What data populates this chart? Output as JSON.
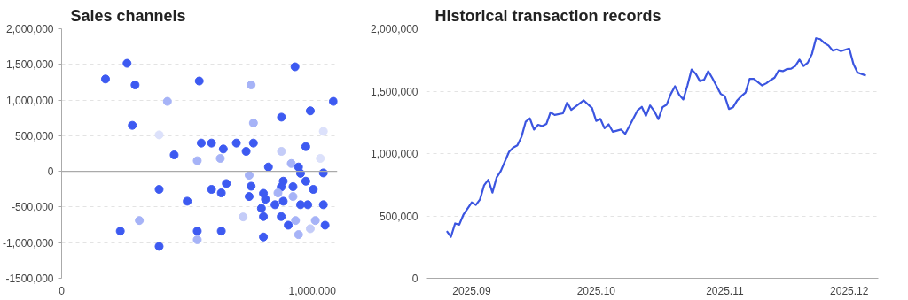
{
  "chart_data": [
    {
      "type": "scatter",
      "title": "Sales channels",
      "marker": "circle",
      "grid": "y",
      "x": [
        175000,
        261000,
        293000,
        282000,
        422000,
        389000,
        449000,
        549000,
        557000,
        598000,
        645000,
        697000,
        736000,
        765000,
        756000,
        765000,
        931000,
        877000,
        992000,
        1084000,
        1044000,
        974000,
        877000,
        1032000,
        541000,
        633000,
        825000,
        916000,
        945000,
        953000,
        1044000,
        748000,
        389000,
        598000,
        637000,
        657000,
        756000,
        748000,
        805000,
        813000,
        797000,
        805000,
        501000,
        851000,
        884000,
        876000,
        884000,
        863000,
        923000,
        923000,
        974000,
        1004000,
        953000,
        982000,
        1044000,
        876000,
        904000,
        933000,
        1012000,
        1051000,
        992000,
        945000,
        805000,
        724000,
        310000,
        234000,
        541000,
        541000,
        637000,
        389000
      ],
      "values": [
        1295000,
        1515000,
        1212000,
        645000,
        981000,
        512000,
        231000,
        1267000,
        397000,
        397000,
        314000,
        397000,
        281000,
        397000,
        1212000,
        678000,
        1466000,
        760000,
        849000,
        981000,
        562000,
        347000,
        281000,
        182000,
        149000,
        182000,
        61000,
        110000,
        61000,
        -28000,
        -22000,
        -55000,
        -253000,
        -253000,
        -303000,
        -171000,
        -209000,
        -353000,
        -309000,
        -391000,
        -518000,
        -634000,
        -419000,
        -468000,
        -138000,
        -220000,
        -419000,
        -303000,
        -215000,
        -353000,
        -138000,
        -253000,
        -468000,
        -468000,
        -468000,
        -634000,
        -755000,
        -689000,
        -689000,
        -755000,
        -804000,
        -887000,
        -920000,
        -639000,
        -689000,
        -837000,
        -837000,
        -959000,
        -837000,
        -1052000
      ],
      "colors": [
        "#3d5af1",
        "#3d5af1",
        "#3d5af1",
        "#3d5af1",
        "#a6b3f7",
        "#dce1fb",
        "#3d5af1",
        "#3d5af1",
        "#3d5af1",
        "#3d5af1",
        "#3d5af1",
        "#3d5af1",
        "#3d5af1",
        "#3d5af1",
        "#a6b3f7",
        "#a6b3f7",
        "#3d5af1",
        "#3d5af1",
        "#3d5af1",
        "#3d5af1",
        "#dce1fb",
        "#3d5af1",
        "#c4ccf8",
        "#dce1fb",
        "#a6b3f7",
        "#a6b3f7",
        "#3d5af1",
        "#a6b3f7",
        "#3d5af1",
        "#3d5af1",
        "#3d5af1",
        "#a6b3f7",
        "#3d5af1",
        "#3d5af1",
        "#3d5af1",
        "#3d5af1",
        "#3d5af1",
        "#3d5af1",
        "#3d5af1",
        "#3d5af1",
        "#3d5af1",
        "#3d5af1",
        "#3d5af1",
        "#3d5af1",
        "#3d5af1",
        "#3d5af1",
        "#3d5af1",
        "#a6b3f7",
        "#3d5af1",
        "#a6b3f7",
        "#3d5af1",
        "#3d5af1",
        "#3d5af1",
        "#3d5af1",
        "#3d5af1",
        "#3d5af1",
        "#3d5af1",
        "#a6b3f7",
        "#a6b3f7",
        "#3d5af1",
        "#c4ccf8",
        "#a6b3f7",
        "#3d5af1",
        "#c4ccf8",
        "#a6b3f7",
        "#3d5af1",
        "#3d5af1",
        "#a6b3f7",
        "#3d5af1",
        "#3d5af1"
      ],
      "xlim": [
        0,
        1100000
      ],
      "xticks": [
        0,
        {
          "value": 1000000,
          "label": "1,000,000"
        }
      ],
      "ylim": [
        -1500000,
        2000000
      ],
      "yticks": [
        {
          "value": -1500000,
          "label": "-1500,000"
        },
        {
          "value": -1000000,
          "label": "-1,000,000"
        },
        {
          "value": -500000,
          "label": "-500,000"
        },
        0,
        {
          "value": 500000,
          "label": "500,000"
        },
        {
          "value": 1000000,
          "label": "1,000,000"
        },
        {
          "value": 1500000,
          "label": "1,500,000"
        },
        {
          "value": 2000000,
          "label": "2,000,000"
        }
      ],
      "ref_lines": [
        {
          "axis": "y",
          "value": 0,
          "color": "#aaaaaa"
        }
      ]
    },
    {
      "type": "line",
      "title": "Historical transaction records",
      "grid": "y",
      "line_style": "solid",
      "x": [
        "2025-08-26",
        "2025-08-27",
        "2025-08-28",
        "2025-08-29",
        "2025-08-30",
        "2025-09-01",
        "2025-09-02",
        "2025-09-03",
        "2025-09-04",
        "2025-09-05",
        "2025-09-06",
        "2025-09-07",
        "2025-09-08",
        "2025-09-10",
        "2025-09-11",
        "2025-09-12",
        "2025-09-13",
        "2025-09-14",
        "2025-09-15",
        "2025-09-16",
        "2025-09-17",
        "2025-09-18",
        "2025-09-19",
        "2025-09-20",
        "2025-09-21",
        "2025-09-23",
        "2025-09-24",
        "2025-09-25",
        "2025-09-28",
        "2025-09-30",
        "2025-10-01",
        "2025-10-02",
        "2025-10-03",
        "2025-10-04",
        "2025-10-05",
        "2025-10-07",
        "2025-10-08",
        "2025-10-09",
        "2025-10-11",
        "2025-10-12",
        "2025-10-13",
        "2025-10-14",
        "2025-10-15",
        "2025-10-16",
        "2025-10-17",
        "2025-10-18",
        "2025-10-19",
        "2025-10-20",
        "2025-10-21",
        "2025-10-22",
        "2025-10-23",
        "2025-10-24",
        "2025-10-25",
        "2025-10-26",
        "2025-10-27",
        "2025-10-28",
        "2025-10-29",
        "2025-10-31",
        "2025-11-01",
        "2025-11-02",
        "2025-11-03",
        "2025-11-04",
        "2025-11-05",
        "2025-11-06",
        "2025-11-07",
        "2025-11-08",
        "2025-11-10",
        "2025-11-11",
        "2025-11-12",
        "2025-11-13",
        "2025-11-14",
        "2025-11-15",
        "2025-11-16",
        "2025-11-17",
        "2025-11-18",
        "2025-11-19",
        "2025-11-20",
        "2025-11-21",
        "2025-11-22",
        "2025-11-23",
        "2025-11-24",
        "2025-11-25",
        "2025-11-26",
        "2025-11-27",
        "2025-11-28",
        "2025-11-29",
        "2025-12-01",
        "2025-12-02",
        "2025-12-03",
        "2025-12-05"
      ],
      "series": [
        {
          "color": "#3b55e0",
          "values": [
            378000,
            333000,
            440000,
            430000,
            509000,
            608000,
            588000,
            632000,
            746000,
            790000,
            687000,
            807000,
            859000,
            1014000,
            1048000,
            1065000,
            1134000,
            1254000,
            1282000,
            1192000,
            1230000,
            1220000,
            1237000,
            1330000,
            1309000,
            1323000,
            1409000,
            1350000,
            1426000,
            1364000,
            1261000,
            1278000,
            1203000,
            1234000,
            1175000,
            1192000,
            1158000,
            1220000,
            1347000,
            1374000,
            1302000,
            1385000,
            1340000,
            1275000,
            1371000,
            1392000,
            1478000,
            1539000,
            1471000,
            1433000,
            1546000,
            1673000,
            1639000,
            1581000,
            1591000,
            1660000,
            1605000,
            1478000,
            1460000,
            1357000,
            1371000,
            1426000,
            1460000,
            1488000,
            1598000,
            1598000,
            1546000,
            1563000,
            1587000,
            1608000,
            1666000,
            1660000,
            1677000,
            1680000,
            1701000,
            1752000,
            1701000,
            1728000,
            1797000,
            1924000,
            1917000,
            1886000,
            1866000,
            1825000,
            1835000,
            1821000,
            1842000,
            1718000,
            1649000,
            1625000
          ]
        }
      ],
      "xlim": [
        "2025-08-21",
        "2025-12-08"
      ],
      "xticks": [
        {
          "value": "2025-09-01",
          "label": "2025.09"
        },
        {
          "value": "2025-10-01",
          "label": "2025.10"
        },
        {
          "value": "2025-11-01",
          "label": "2025.11"
        },
        {
          "value": "2025-12-01",
          "label": "2025.12"
        }
      ],
      "ylim": [
        0,
        2000000
      ],
      "yticks": [
        0,
        {
          "value": 500000,
          "label": "500,000"
        },
        {
          "value": 1000000,
          "label": "1,000,000"
        },
        {
          "value": 1500000,
          "label": "1,500,000"
        },
        {
          "value": 2000000,
          "label": "2,000,000"
        }
      ]
    }
  ]
}
